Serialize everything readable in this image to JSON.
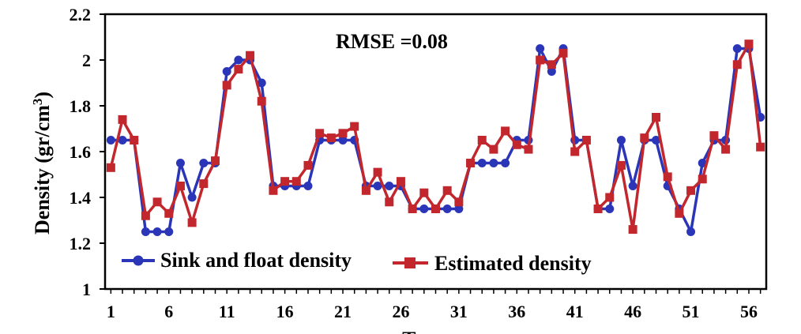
{
  "chart_data": {
    "type": "line",
    "xlabel": "Test no.",
    "ylabel": "Density (gr/cm",
    "ylabel_sup": "3",
    "ylabel_close": ")",
    "ylim": [
      1,
      2.2
    ],
    "yticks": [
      "1",
      "1.2",
      "1.4",
      "1.6",
      "1.8",
      "2",
      "2.2"
    ],
    "xlim": [
      0.5,
      57.5
    ],
    "xticks": [
      "1",
      "6",
      "11",
      "16",
      "21",
      "26",
      "31",
      "36",
      "41",
      "46",
      "51",
      "56"
    ],
    "annotation": "RMSE =0.08",
    "legend_position": "bottom-left",
    "grid": false,
    "x": [
      1,
      2,
      3,
      4,
      5,
      6,
      7,
      8,
      9,
      10,
      11,
      12,
      13,
      14,
      15,
      16,
      17,
      18,
      19,
      20,
      21,
      22,
      23,
      24,
      25,
      26,
      27,
      28,
      29,
      30,
      31,
      32,
      33,
      34,
      35,
      36,
      37,
      38,
      39,
      40,
      41,
      42,
      43,
      44,
      45,
      46,
      47,
      48,
      49,
      50,
      51,
      52,
      53,
      54,
      55,
      56,
      57
    ],
    "series": [
      {
        "name": "Sink and float density",
        "color": "#2a35b8",
        "marker": "circle",
        "values": [
          1.65,
          1.65,
          1.65,
          1.25,
          1.25,
          1.25,
          1.55,
          1.4,
          1.55,
          1.55,
          1.95,
          2.0,
          2.0,
          1.9,
          1.45,
          1.45,
          1.45,
          1.45,
          1.65,
          1.65,
          1.65,
          1.65,
          1.45,
          1.45,
          1.45,
          1.45,
          1.35,
          1.35,
          1.35,
          1.35,
          1.35,
          1.55,
          1.55,
          1.55,
          1.55,
          1.65,
          1.65,
          2.05,
          1.95,
          2.05,
          1.65,
          1.65,
          1.35,
          1.35,
          1.65,
          1.45,
          1.65,
          1.65,
          1.45,
          1.35,
          1.25,
          1.55,
          1.65,
          1.65,
          2.05,
          2.05,
          1.75
        ]
      },
      {
        "name": "Estimated density",
        "color": "#c1272d",
        "marker": "square",
        "values": [
          1.53,
          1.74,
          1.65,
          1.32,
          1.38,
          1.33,
          1.45,
          1.29,
          1.46,
          1.56,
          1.89,
          1.96,
          2.02,
          1.82,
          1.43,
          1.47,
          1.47,
          1.54,
          1.68,
          1.66,
          1.68,
          1.71,
          1.43,
          1.51,
          1.38,
          1.47,
          1.35,
          1.42,
          1.35,
          1.43,
          1.38,
          1.55,
          1.65,
          1.61,
          1.69,
          1.63,
          1.61,
          2.0,
          1.98,
          2.03,
          1.6,
          1.65,
          1.35,
          1.4,
          1.54,
          1.26,
          1.66,
          1.75,
          1.49,
          1.33,
          1.43,
          1.48,
          1.67,
          1.61,
          1.98,
          2.07,
          1.62
        ]
      }
    ]
  }
}
